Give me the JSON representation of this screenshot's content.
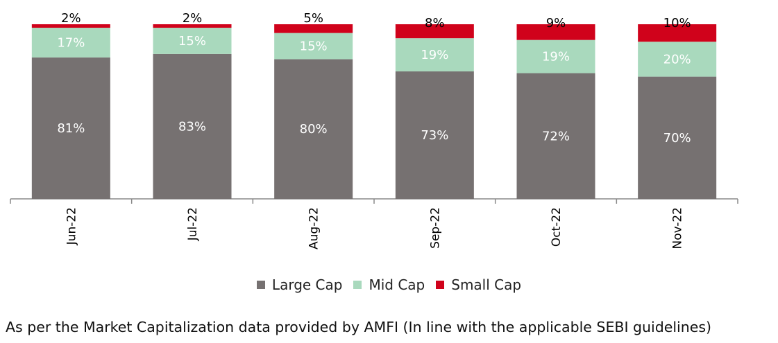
{
  "chart_data": {
    "type": "bar",
    "stacked": true,
    "percent_labels": true,
    "categories": [
      "Jun-22",
      "Jul-22",
      "Aug-22",
      "Sep-22",
      "Oct-22",
      "Nov-22"
    ],
    "series": [
      {
        "name": "Large Cap",
        "values": [
          81,
          83,
          80,
          73,
          72,
          70
        ],
        "color": "#767171",
        "label_color": "#ffffff"
      },
      {
        "name": "Mid Cap",
        "values": [
          17,
          15,
          15,
          19,
          19,
          20
        ],
        "color": "#a9d9bd",
        "label_color": "#ffffff"
      },
      {
        "name": "Small Cap",
        "values": [
          2,
          2,
          5,
          8,
          9,
          10
        ],
        "color": "#d0021b",
        "label_color": "#000000"
      }
    ],
    "ylim": [
      0,
      100
    ],
    "grid": false,
    "legend_position": "bottom"
  },
  "footnote": "As per the Market Capitalization data provided by AMFI (In line with the applicable SEBI guidelines)"
}
